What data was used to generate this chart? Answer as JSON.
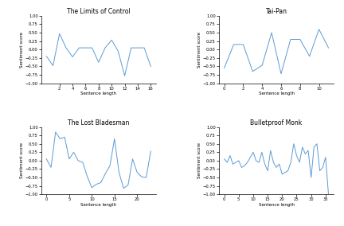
{
  "plots": [
    {
      "title": "The Limits of Control",
      "x": [
        0,
        1,
        2,
        3,
        4,
        5,
        6,
        7,
        8,
        9,
        10,
        11,
        12,
        13,
        14,
        15,
        16
      ],
      "y": [
        -0.2,
        -0.48,
        0.47,
        0.05,
        -0.22,
        0.05,
        0.05,
        0.05,
        -0.38,
        0.05,
        0.28,
        -0.05,
        -0.78,
        0.05,
        0.05,
        0.05,
        -0.5
      ],
      "xlabel": "Sentence length",
      "ylabel": "Sentiment score",
      "ylim": [
        -1.0,
        1.0
      ],
      "yticks": [
        -1.0,
        -0.75,
        -0.5,
        -0.25,
        0.0,
        0.25,
        0.5,
        0.75,
        1.0
      ],
      "xticks": [
        2,
        4,
        6,
        8,
        10,
        12,
        14,
        16
      ]
    },
    {
      "title": "Tai-Pan",
      "x": [
        0,
        1,
        2,
        3,
        4,
        5,
        6,
        7,
        8,
        9,
        10,
        11
      ],
      "y": [
        -0.55,
        0.15,
        0.15,
        -0.65,
        -0.47,
        0.5,
        -0.72,
        0.3,
        0.3,
        -0.2,
        0.6,
        0.05
      ],
      "xlabel": "Sentence length",
      "ylabel": "Sentiment score",
      "ylim": [
        -1.0,
        1.0
      ],
      "yticks": [
        -1.0,
        -0.75,
        -0.5,
        -0.25,
        0.0,
        0.25,
        0.5,
        0.75,
        1.0
      ],
      "xticks": [
        0,
        2,
        4,
        6,
        8,
        10
      ]
    },
    {
      "title": "The Lost Bladesman",
      "x": [
        0,
        1,
        2,
        3,
        4,
        5,
        6,
        7,
        8,
        9,
        10,
        11,
        12,
        13,
        14,
        15,
        16,
        17,
        18,
        19,
        20,
        21,
        22,
        23
      ],
      "y": [
        0.05,
        -0.2,
        0.85,
        0.65,
        0.7,
        0.05,
        0.25,
        0.0,
        -0.05,
        -0.47,
        -0.8,
        -0.7,
        -0.65,
        -0.38,
        -0.15,
        0.65,
        -0.35,
        -0.82,
        -0.72,
        0.05,
        -0.35,
        -0.48,
        -0.5,
        0.28
      ],
      "xlabel": "Sentence length",
      "ylabel": "Sentiment score",
      "ylim": [
        -1.0,
        1.0
      ],
      "yticks": [
        -1.0,
        -0.75,
        -0.5,
        -0.25,
        0.0,
        0.25,
        0.5,
        0.75,
        1.0
      ],
      "xticks": [
        0,
        5,
        10,
        15,
        20
      ]
    },
    {
      "title": "Bulletproof Monk",
      "x": [
        0,
        1,
        2,
        3,
        4,
        5,
        6,
        7,
        8,
        9,
        10,
        11,
        12,
        13,
        14,
        15,
        16,
        17,
        18,
        19,
        20,
        21,
        22,
        23,
        24,
        25,
        26,
        27,
        28,
        29,
        30,
        31,
        32,
        33,
        34,
        35,
        36
      ],
      "y": [
        0.05,
        -0.05,
        0.15,
        -0.1,
        -0.05,
        0.0,
        -0.2,
        -0.15,
        -0.05,
        0.1,
        0.25,
        0.0,
        -0.05,
        0.25,
        -0.1,
        -0.3,
        0.3,
        -0.05,
        -0.2,
        -0.1,
        -0.4,
        -0.35,
        -0.3,
        -0.05,
        0.5,
        0.15,
        -0.05,
        0.4,
        0.2,
        0.3,
        -0.5,
        0.4,
        0.5,
        -0.3,
        -0.2,
        0.1,
        -1.0
      ],
      "xlabel": "Sentence length",
      "ylabel": "Sentiment score",
      "ylim": [
        -1.0,
        1.0
      ],
      "yticks": [
        -1.0,
        -0.75,
        -0.5,
        -0.25,
        0.0,
        0.25,
        0.5,
        0.75,
        1.0
      ],
      "xticks": [
        0,
        5,
        10,
        15,
        20,
        25,
        30,
        35
      ]
    }
  ],
  "line_color": "#5b9bd5",
  "background_color": "#ffffff",
  "title_fontsize": 5.5,
  "label_fontsize": 4.0,
  "tick_fontsize": 3.8,
  "linewidth": 0.7
}
